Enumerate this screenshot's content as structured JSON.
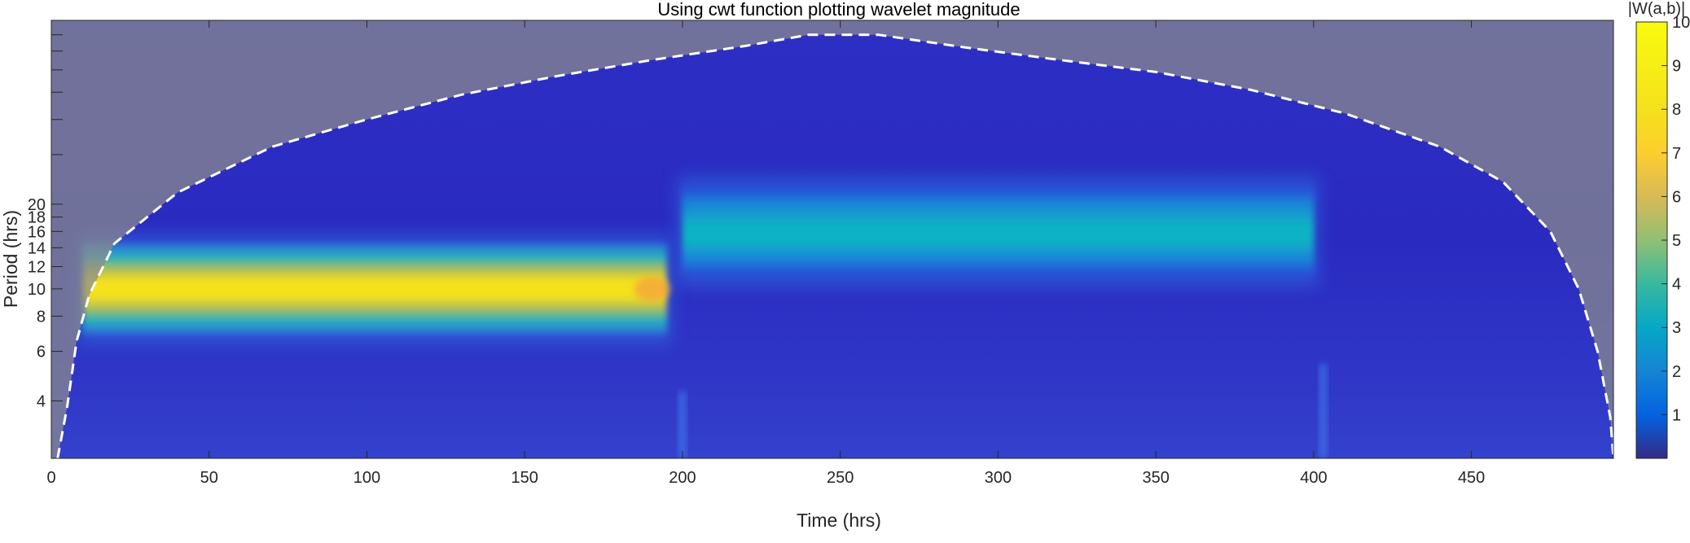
{
  "chart_data": {
    "type": "heatmap",
    "title": "Using cwt function plotting wavelet magnitude",
    "xlabel": "Time (hrs)",
    "ylabel": "Period (hrs)",
    "xlim": [
      0,
      495
    ],
    "ylim": [
      2.5,
      90
    ],
    "y_scale": "log",
    "x_ticks": [
      0,
      50,
      100,
      150,
      200,
      250,
      300,
      350,
      400,
      450
    ],
    "y_ticks": [
      4,
      6,
      8,
      10,
      12,
      14,
      16,
      18,
      20
    ],
    "y_minor_ticks": [
      30,
      40,
      50,
      60,
      70,
      80,
      90
    ],
    "colorbar": {
      "label": "|W(a,b)|",
      "range": [
        0,
        10
      ],
      "ticks": [
        1,
        2,
        3,
        4,
        5,
        6,
        7,
        8,
        9,
        10
      ],
      "colormap": "parula"
    },
    "components": [
      {
        "t_start": 10,
        "t_end": 195,
        "period": 10,
        "magnitude": 10
      },
      {
        "t_start": 200,
        "t_end": 400,
        "period": 16,
        "magnitude": 5
      }
    ],
    "background_magnitude": 0.6,
    "cone_of_influence": {
      "style": "white dashed line",
      "shaded": true,
      "points": [
        [
          2,
          2.5
        ],
        [
          5,
          3.8
        ],
        [
          8,
          6.5
        ],
        [
          12,
          9.5
        ],
        [
          20,
          14.5
        ],
        [
          40,
          22
        ],
        [
          70,
          32
        ],
        [
          100,
          40
        ],
        [
          130,
          49
        ],
        [
          160,
          57
        ],
        [
          190,
          65
        ],
        [
          220,
          73
        ],
        [
          240,
          80
        ],
        [
          262,
          80
        ],
        [
          290,
          72
        ],
        [
          320,
          65
        ],
        [
          350,
          59
        ],
        [
          380,
          51
        ],
        [
          410,
          42
        ],
        [
          440,
          32
        ],
        [
          460,
          24
        ],
        [
          475,
          16
        ],
        [
          484,
          10
        ],
        [
          490,
          6
        ],
        [
          494,
          3.5
        ],
        [
          495,
          2.5
        ]
      ]
    }
  }
}
